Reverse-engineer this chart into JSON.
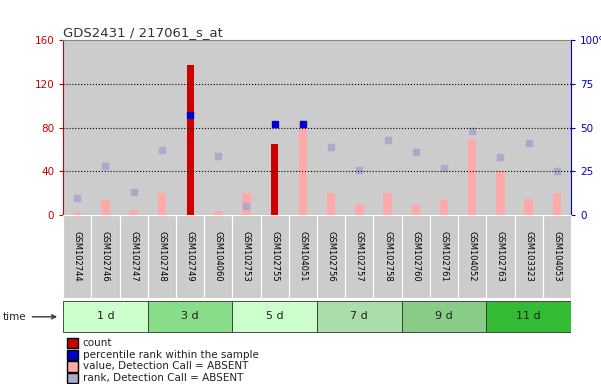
{
  "title": "GDS2431 / 217061_s_at",
  "samples": [
    "GSM102744",
    "GSM102746",
    "GSM102747",
    "GSM102748",
    "GSM102749",
    "GSM104060",
    "GSM102753",
    "GSM102755",
    "GSM104051",
    "GSM102756",
    "GSM102757",
    "GSM102758",
    "GSM102760",
    "GSM102761",
    "GSM104052",
    "GSM102763",
    "GSM103323",
    "GSM104053"
  ],
  "time_groups": [
    {
      "label": "1 d",
      "start": 0,
      "end": 3,
      "color": "#ccffcc"
    },
    {
      "label": "3 d",
      "start": 3,
      "end": 6,
      "color": "#88dd88"
    },
    {
      "label": "5 d",
      "start": 6,
      "end": 9,
      "color": "#ccffcc"
    },
    {
      "label": "7 d",
      "start": 9,
      "end": 12,
      "color": "#aaddaa"
    },
    {
      "label": "9 d",
      "start": 12,
      "end": 15,
      "color": "#88cc88"
    },
    {
      "label": "11 d",
      "start": 15,
      "end": 18,
      "color": "#33bb33"
    }
  ],
  "count_values": [
    0,
    0,
    0,
    0,
    137,
    0,
    0,
    65,
    0,
    0,
    0,
    0,
    0,
    0,
    0,
    0,
    0,
    0
  ],
  "percentile_values": [
    null,
    null,
    null,
    null,
    57,
    null,
    null,
    52,
    52,
    null,
    null,
    null,
    null,
    null,
    null,
    null,
    null,
    null
  ],
  "value_absent": [
    3,
    14,
    5,
    20,
    4,
    4,
    20,
    null,
    85,
    20,
    10,
    20,
    10,
    14,
    70,
    40,
    15,
    20
  ],
  "rank_absent": [
    10,
    28,
    13,
    37,
    null,
    34,
    5,
    null,
    52,
    39,
    26,
    43,
    36,
    27,
    48,
    33,
    41,
    25
  ],
  "ylim_left": [
    0,
    160
  ],
  "ylim_right": [
    0,
    100
  ],
  "yticks_left": [
    0,
    40,
    80,
    120,
    160
  ],
  "yticks_right": [
    0,
    25,
    50,
    75,
    100
  ],
  "count_color": "#cc0000",
  "percentile_color": "#0000cc",
  "value_absent_color": "#ffaaaa",
  "rank_absent_color": "#aaaacc",
  "bg_color": "#ffffff",
  "left_axis_color": "#cc0000",
  "right_axis_color": "#0000cc",
  "bar_width": 0.5,
  "marker_size": 5,
  "col_bg": "#cccccc"
}
